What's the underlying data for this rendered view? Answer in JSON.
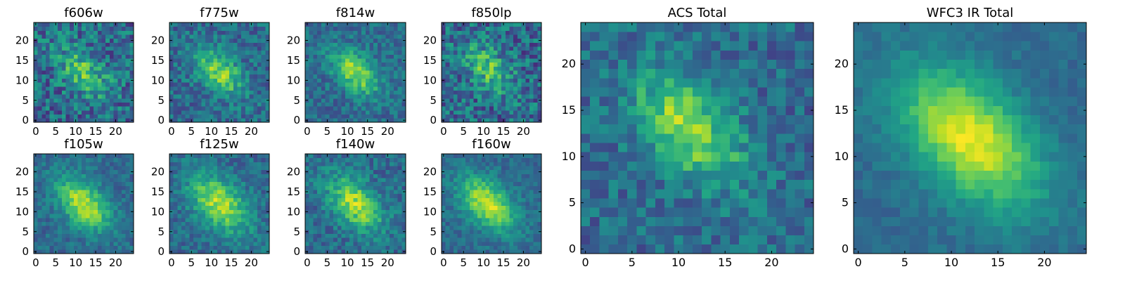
{
  "chart_data": {
    "type": "heatmap",
    "colormap": "viridis",
    "panels": [
      {
        "title": "f606w",
        "grid": [
          25,
          25
        ],
        "xticks": [
          0,
          5,
          10,
          15,
          20
        ],
        "yticks": [
          0,
          5,
          10,
          15,
          20
        ],
        "xlim": [
          0,
          24
        ],
        "ylim": [
          0,
          24
        ],
        "signal": 0.55,
        "noise": 0.45,
        "sigma": 4.2,
        "seed": 11,
        "center": [
          12,
          12
        ]
      },
      {
        "title": "f775w",
        "grid": [
          25,
          25
        ],
        "xticks": [
          0,
          5,
          10,
          15,
          20
        ],
        "yticks": [
          0,
          5,
          10,
          15,
          20
        ],
        "xlim": [
          0,
          24
        ],
        "ylim": [
          0,
          24
        ],
        "signal": 0.7,
        "noise": 0.32,
        "sigma": 4.0,
        "seed": 22,
        "center": [
          12,
          12
        ]
      },
      {
        "title": "f814w",
        "grid": [
          25,
          25
        ],
        "xticks": [
          0,
          5,
          10,
          15,
          20
        ],
        "yticks": [
          0,
          5,
          10,
          15,
          20
        ],
        "xlim": [
          0,
          24
        ],
        "ylim": [
          0,
          24
        ],
        "signal": 0.75,
        "noise": 0.28,
        "sigma": 4.0,
        "seed": 33,
        "center": [
          12,
          12
        ]
      },
      {
        "title": "f850lp",
        "grid": [
          25,
          25
        ],
        "xticks": [
          0,
          5,
          10,
          15,
          20
        ],
        "yticks": [
          0,
          5,
          10,
          15,
          20
        ],
        "xlim": [
          0,
          24
        ],
        "ylim": [
          0,
          24
        ],
        "signal": 0.55,
        "noise": 0.45,
        "sigma": 4.0,
        "seed": 44,
        "center": [
          11,
          13
        ]
      },
      {
        "title": "f105w",
        "grid": [
          25,
          25
        ],
        "xticks": [
          0,
          5,
          10,
          15,
          20
        ],
        "yticks": [
          0,
          5,
          10,
          15,
          20
        ],
        "xlim": [
          0,
          24
        ],
        "ylim": [
          0,
          24
        ],
        "signal": 0.85,
        "noise": 0.22,
        "sigma": 4.5,
        "seed": 55,
        "center": [
          12,
          12
        ]
      },
      {
        "title": "f125w",
        "grid": [
          25,
          25
        ],
        "xticks": [
          0,
          5,
          10,
          15,
          20
        ],
        "yticks": [
          0,
          5,
          10,
          15,
          20
        ],
        "xlim": [
          0,
          24
        ],
        "ylim": [
          0,
          24
        ],
        "signal": 0.8,
        "noise": 0.25,
        "sigma": 5.0,
        "seed": 66,
        "center": [
          12,
          12
        ]
      },
      {
        "title": "f140w",
        "grid": [
          25,
          25
        ],
        "xticks": [
          0,
          5,
          10,
          15,
          20
        ],
        "yticks": [
          0,
          5,
          10,
          15,
          20
        ],
        "xlim": [
          0,
          24
        ],
        "ylim": [
          0,
          24
        ],
        "signal": 0.8,
        "noise": 0.28,
        "sigma": 4.5,
        "seed": 77,
        "center": [
          12,
          12
        ]
      },
      {
        "title": "f160w",
        "grid": [
          25,
          25
        ],
        "xticks": [
          0,
          5,
          10,
          15,
          20
        ],
        "yticks": [
          0,
          5,
          10,
          15,
          20
        ],
        "xlim": [
          0,
          24
        ],
        "ylim": [
          0,
          24
        ],
        "signal": 0.88,
        "noise": 0.2,
        "sigma": 4.5,
        "seed": 88,
        "center": [
          11,
          12
        ]
      },
      {
        "title": "ACS Total",
        "grid": [
          25,
          25
        ],
        "xticks": [
          0,
          5,
          10,
          15,
          20
        ],
        "yticks": [
          0,
          5,
          10,
          15,
          20
        ],
        "xlim": [
          0,
          24
        ],
        "ylim": [
          0,
          24
        ],
        "signal": 0.75,
        "noise": 0.3,
        "sigma": 4.0,
        "seed": 99,
        "center": [
          11,
          13
        ]
      },
      {
        "title": "WFC3 IR Total",
        "grid": [
          25,
          25
        ],
        "xticks": [
          0,
          5,
          10,
          15,
          20
        ],
        "yticks": [
          0,
          5,
          10,
          15,
          20
        ],
        "xlim": [
          0,
          24
        ],
        "ylim": [
          0,
          24
        ],
        "signal": 0.95,
        "noise": 0.12,
        "sigma": 5.0,
        "seed": 111,
        "center": [
          12,
          12
        ]
      }
    ]
  }
}
